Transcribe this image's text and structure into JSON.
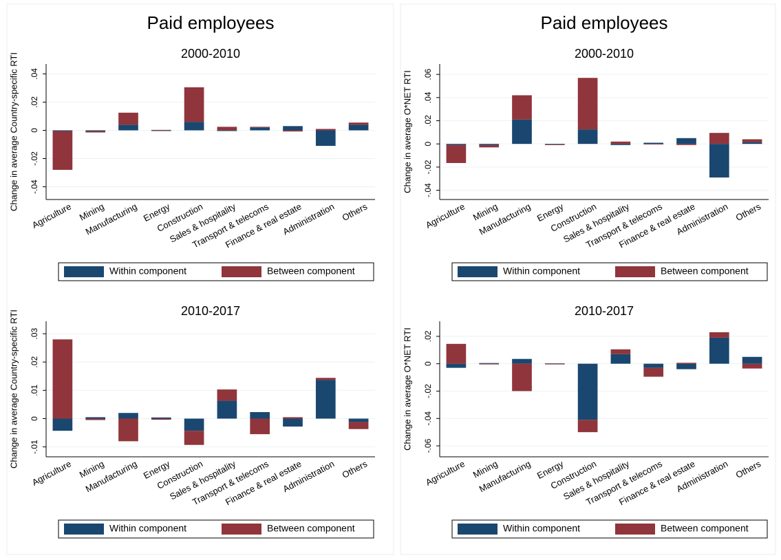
{
  "chart_data": [
    {
      "type": "bar",
      "title": "Paid employees",
      "subtitle": "2000-2010",
      "y_label": "Change in average Country-specific RTI",
      "categories": [
        "Agriculture",
        "Mining",
        "Manufacturing",
        "Energy",
        "Construction",
        "Sales & hospitality",
        "Transport & telecoms",
        "Finance & real estate",
        "Administration",
        "Others"
      ],
      "series": [
        {
          "name": "Within component",
          "color": "#1a476f",
          "values": [
            -0.0005,
            -0.0005,
            0.004,
            0.0003,
            0.006,
            -0.0005,
            0.002,
            0.003,
            -0.011,
            0.004
          ]
        },
        {
          "name": "Between component",
          "color": "#90353b",
          "values": [
            -0.0275,
            -0.001,
            0.0085,
            -0.0005,
            0.0245,
            0.0025,
            0.0005,
            -0.0008,
            0.001,
            0.0015
          ]
        }
      ],
      "ylim": [
        -0.049,
        0.047
      ],
      "yticks": [
        {
          "value": -0.04,
          "label": "-.04"
        },
        {
          "value": -0.02,
          "label": "-.02"
        },
        0,
        {
          "value": 0.02,
          "label": ".02"
        },
        {
          "value": 0.04,
          "label": ".04"
        }
      ],
      "grid": true,
      "stacked": true,
      "legend": "bottom"
    },
    {
      "type": "bar",
      "title": "Paid employees",
      "subtitle": "2000-2010",
      "y_label": "Change in average O*NET RTI",
      "categories": [
        "Agriculture",
        "Mining",
        "Manufacturing",
        "Energy",
        "Construction",
        "Sales & hospitality",
        "Transport & telecoms",
        "Finance & real estate",
        "Administration",
        "Others"
      ],
      "series": [
        {
          "name": "Within component",
          "color": "#1a476f",
          "values": [
            -0.001,
            -0.001,
            0.021,
            -0.0005,
            0.0125,
            -0.001,
            0.001,
            0.005,
            -0.029,
            0.0015
          ]
        },
        {
          "name": "Between component",
          "color": "#90353b",
          "values": [
            -0.0155,
            -0.002,
            0.021,
            -0.0005,
            0.0445,
            0.002,
            -0.0005,
            -0.001,
            0.0095,
            0.0025
          ]
        }
      ],
      "ylim": [
        -0.048,
        0.069
      ],
      "yticks": [
        {
          "value": -0.04,
          "label": "-.04"
        },
        {
          "value": -0.02,
          "label": "-.02"
        },
        0,
        {
          "value": 0.02,
          "label": ".02"
        },
        {
          "value": 0.04,
          "label": ".04"
        },
        {
          "value": 0.06,
          "label": ".06"
        }
      ],
      "grid": true,
      "stacked": true,
      "legend": "bottom"
    },
    {
      "type": "bar",
      "subtitle": "2010-2017",
      "y_label": "Change in average Country-specific RTI",
      "categories": [
        "Agriculture",
        "Mining",
        "Manufacturing",
        "Energy",
        "Construction",
        "Sales & hospitality",
        "Transport & telecoms",
        "Finance & real estate",
        "Administration",
        "Others"
      ],
      "series": [
        {
          "name": "Within component",
          "color": "#1a476f",
          "values": [
            -0.0043,
            0.0005,
            0.002,
            0.0004,
            -0.0043,
            0.0063,
            0.0023,
            -0.0028,
            0.0137,
            -0.0012
          ]
        },
        {
          "name": "Between component",
          "color": "#90353b",
          "values": [
            0.028,
            -0.0005,
            -0.008,
            -0.0004,
            -0.005,
            0.004,
            -0.0055,
            0.0005,
            0.0007,
            -0.0025
          ]
        }
      ],
      "ylim": [
        -0.0135,
        0.0344
      ],
      "yticks": [
        {
          "value": -0.01,
          "label": "-.01"
        },
        0,
        {
          "value": 0.01,
          "label": ".01"
        },
        {
          "value": 0.02,
          "label": ".02"
        },
        {
          "value": 0.03,
          "label": ".03"
        }
      ],
      "grid": true,
      "stacked": true,
      "legend": "bottom"
    },
    {
      "type": "bar",
      "subtitle": "2010-2017",
      "y_label": "Change in average O*NET RTI",
      "categories": [
        "Agriculture",
        "Mining",
        "Manufacturing",
        "Energy",
        "Construction",
        "Sales & hospitality",
        "Transport & telecoms",
        "Finance & real estate",
        "Administration",
        "Others"
      ],
      "series": [
        {
          "name": "Within component",
          "color": "#1a476f",
          "values": [
            -0.003,
            0.0005,
            0.0035,
            0.0003,
            -0.041,
            0.007,
            -0.003,
            -0.004,
            0.019,
            0.005
          ]
        },
        {
          "name": "Between component",
          "color": "#90353b",
          "values": [
            0.0145,
            -0.0005,
            -0.02,
            -0.0005,
            -0.009,
            0.0035,
            -0.0065,
            0.0007,
            0.004,
            -0.0035
          ]
        }
      ],
      "ylim": [
        -0.068,
        0.031
      ],
      "yticks": [
        {
          "value": -0.06,
          "label": "-.06"
        },
        {
          "value": -0.04,
          "label": "-.04"
        },
        {
          "value": -0.02,
          "label": "-.02"
        },
        0,
        {
          "value": 0.02,
          "label": ".02"
        }
      ],
      "grid": true,
      "stacked": true,
      "legend": "bottom"
    }
  ]
}
